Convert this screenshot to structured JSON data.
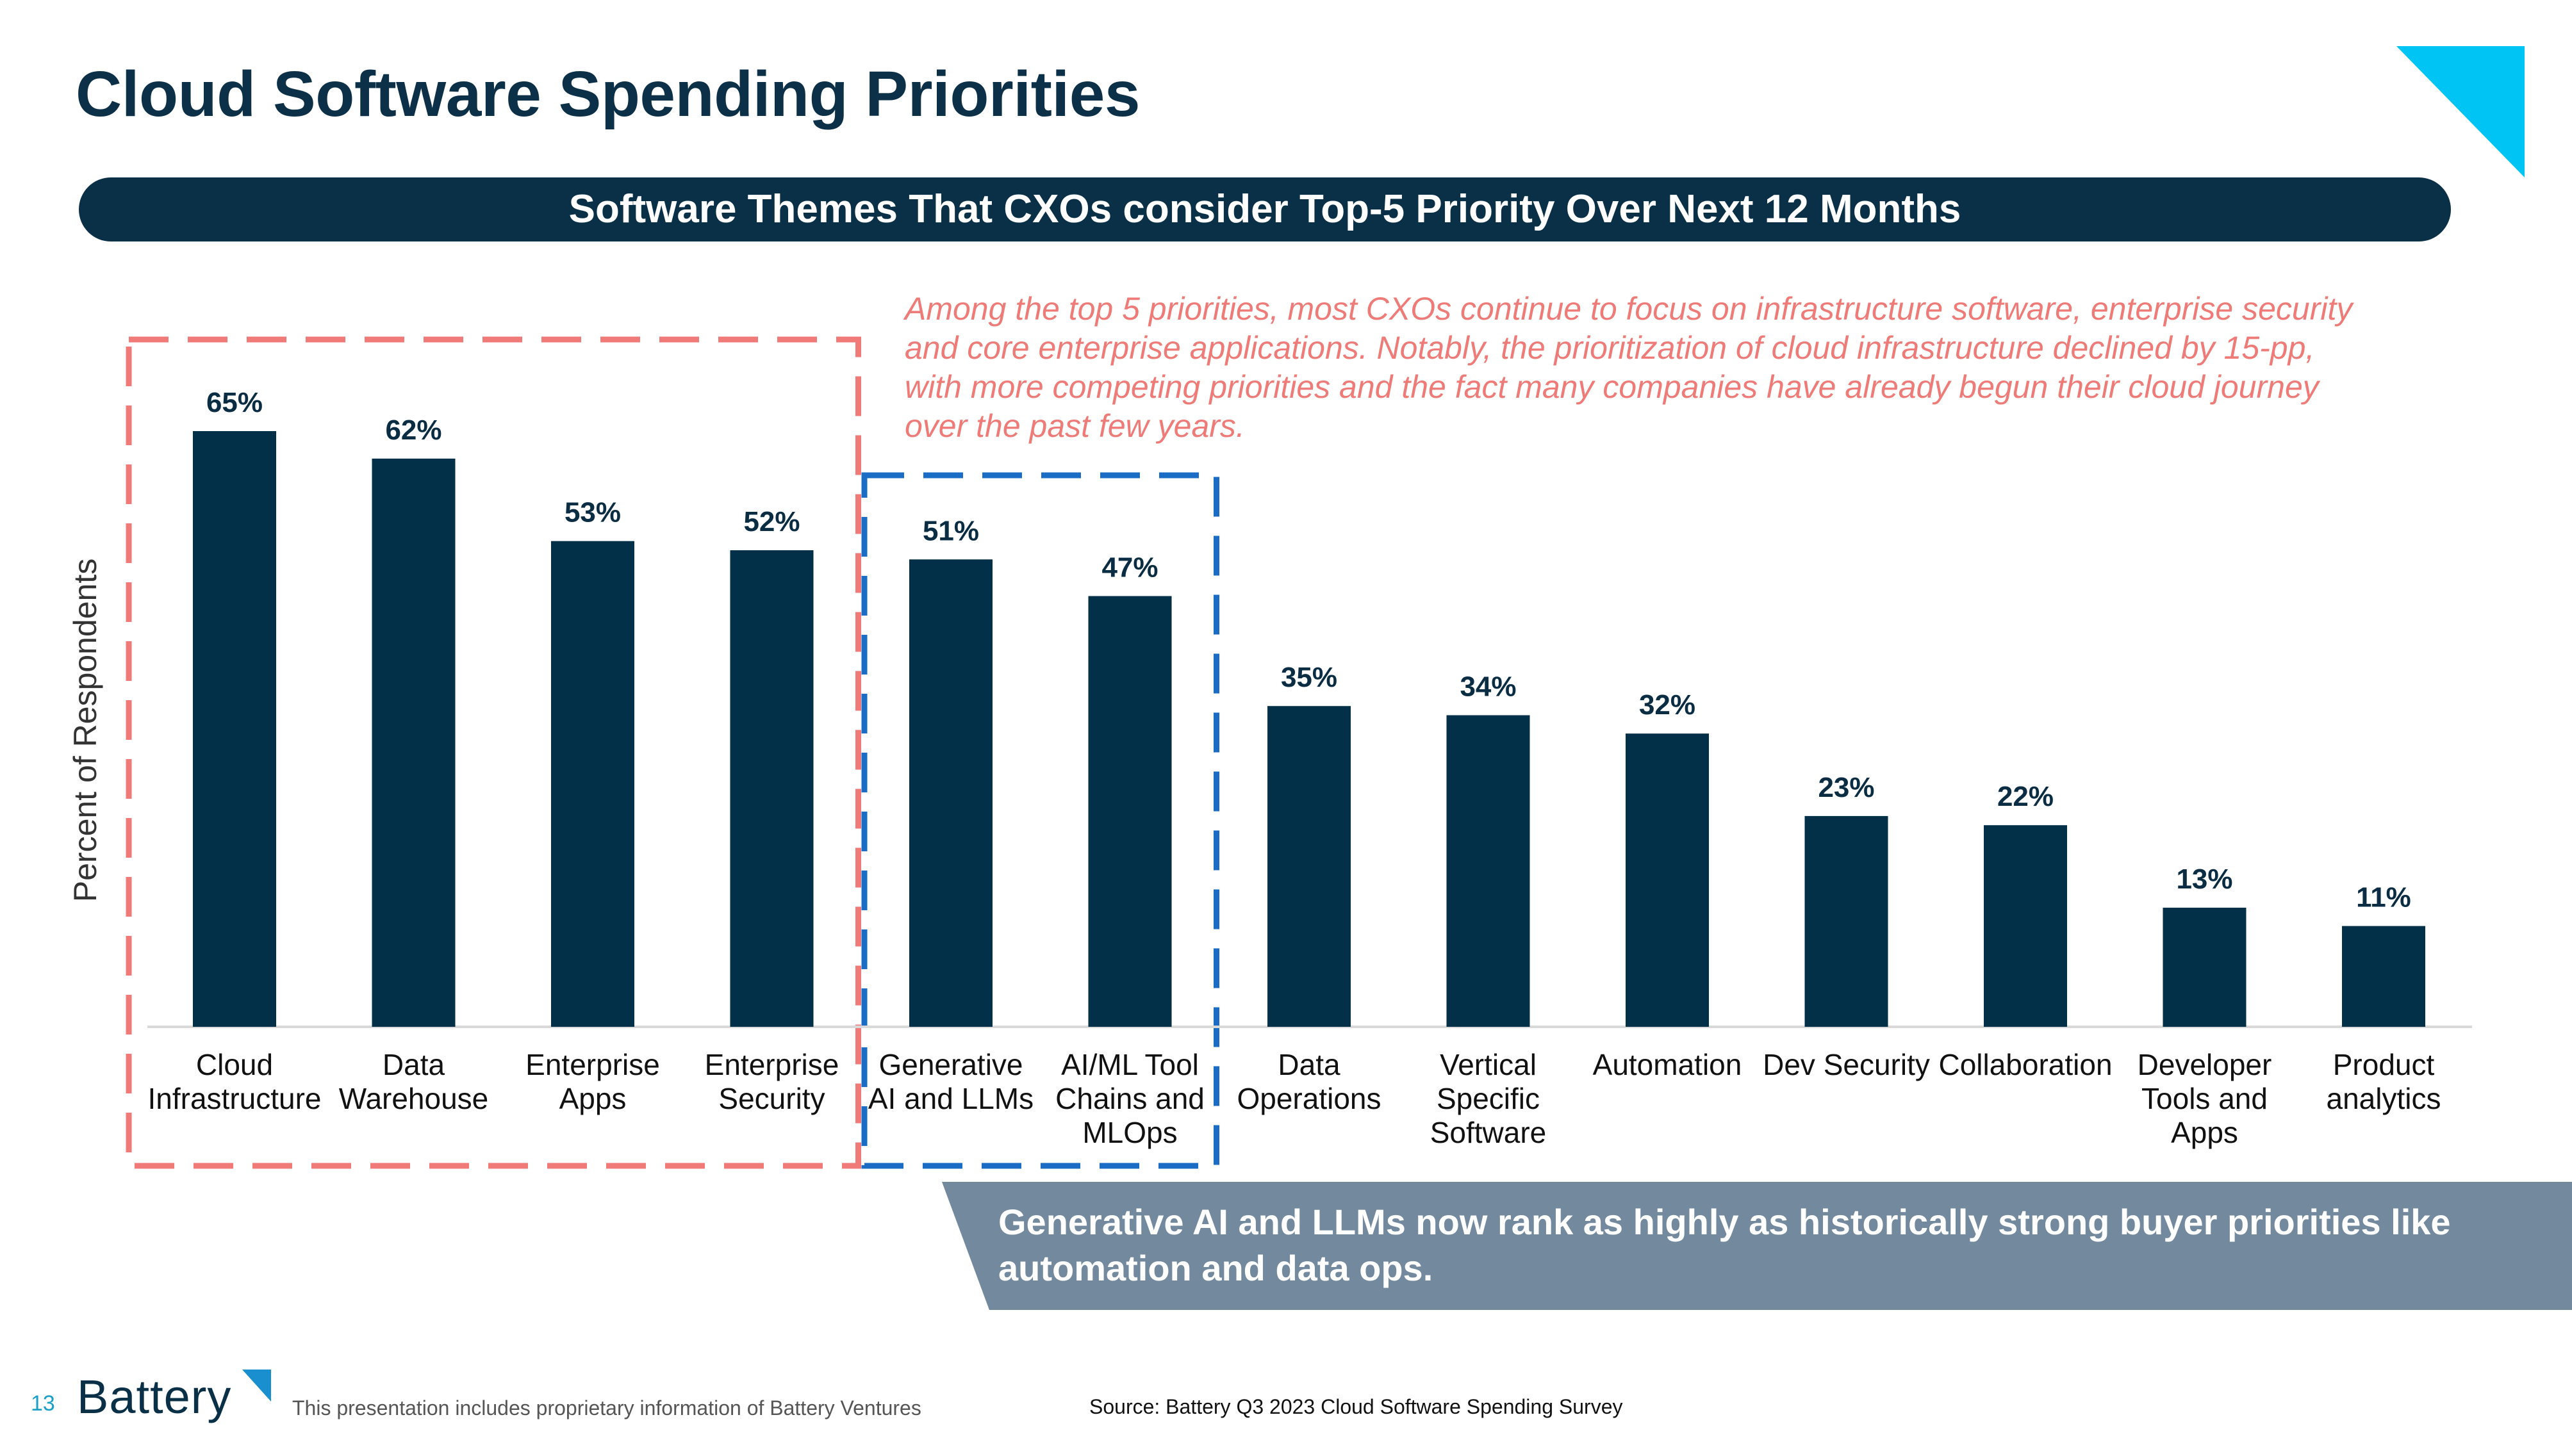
{
  "header": {
    "title": "Cloud Software Spending Priorities",
    "banner": "Software Themes That CXOs consider Top-5 Priority Over Next 12 Months"
  },
  "annotation": "Among the top 5 priorities, most CXOs continue to focus on infrastructure software, enterprise security and core enterprise applications. Notably, the prioritization of cloud infrastructure declined by 15-pp, with more competing priorities and the fact many companies have already begun their cloud journey over the past few years.",
  "callout": "Generative AI and LLMs now rank as highly as historically strong buyer priorities like automation and data ops.",
  "footer": {
    "page_number": "13",
    "logo_text": "Battery",
    "disclaimer": "This presentation includes proprietary information of Battery Ventures",
    "source": "Source: Battery Q3 2023 Cloud Software Spending Survey"
  },
  "colors": {
    "bar": "#033049",
    "banner": "#0a3048",
    "annotation": "#ee7b77",
    "red_box": "#f07a78",
    "blue_box": "#1a6cc4",
    "callout_bg": "#73899e",
    "corner_accent": "#00c4f4"
  },
  "chart_data": {
    "type": "bar",
    "categories": [
      [
        "Cloud",
        "Infrastructure"
      ],
      [
        "Data",
        "Warehouse"
      ],
      [
        "Enterprise",
        "Apps"
      ],
      [
        "Enterprise",
        "Security"
      ],
      [
        "Generative",
        "AI and LLMs"
      ],
      [
        "AI/ML Tool",
        "Chains and",
        "MLOps"
      ],
      [
        "Data",
        "Operations"
      ],
      [
        "Vertical",
        "Specific",
        "Software"
      ],
      [
        "Automation"
      ],
      [
        "Dev Security"
      ],
      [
        "Collaboration"
      ],
      [
        "Developer",
        "Tools and",
        "Apps"
      ],
      [
        "Product",
        "analytics"
      ]
    ],
    "values": [
      65,
      62,
      53,
      52,
      51,
      47,
      35,
      34,
      32,
      23,
      22,
      13,
      11
    ],
    "data_labels": [
      "65%",
      "62%",
      "53%",
      "52%",
      "51%",
      "47%",
      "35%",
      "34%",
      "32%",
      "23%",
      "22%",
      "13%",
      "11%"
    ],
    "ylabel": "Percent of Respondents",
    "ylim": [
      0,
      65
    ],
    "grid": false,
    "highlight_groups": [
      {
        "style": "dashed-red-box",
        "from_index": 0,
        "to_index": 3
      },
      {
        "style": "dashed-blue-box",
        "from_index": 4,
        "to_index": 5
      }
    ]
  }
}
